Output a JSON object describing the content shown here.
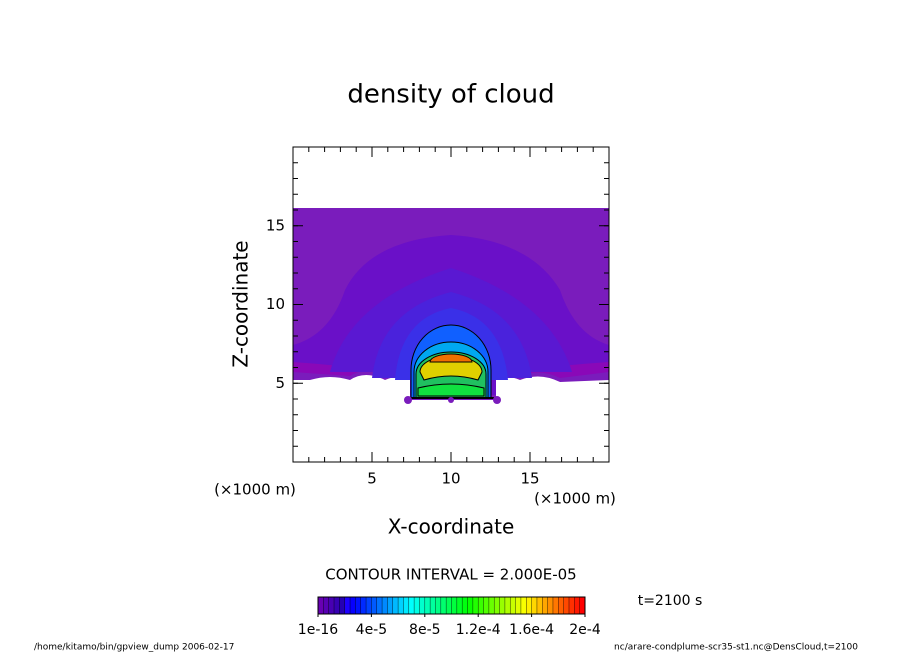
{
  "chart_data": {
    "type": "contour",
    "title": "density of cloud",
    "x_label": "X-coordinate",
    "y_label": "Z-coordinate",
    "x_unit": "(×1000 m)",
    "y_unit": "(×1000 m)",
    "xlim": [
      0,
      20
    ],
    "ylim": [
      0,
      20
    ],
    "xticks": [
      5,
      10,
      15
    ],
    "yticks": [
      5,
      10,
      15
    ],
    "contour_interval": "CONTOUR INTERVAL = 2.000E-05",
    "time_label": "t=2100 s",
    "colorbar": {
      "lim": [
        1e-16,
        0.0002
      ],
      "ticks": [
        1e-16,
        {
          "value": 4e-05,
          "label": "4e-5"
        },
        {
          "value": 8e-05,
          "label": "8e-5"
        },
        {
          "value": 0.00012,
          "label": "1.2e-4"
        },
        {
          "value": 0.00016,
          "label": "1.6e-4"
        },
        {
          "value": 0.0002,
          "label": "2e-4"
        }
      ]
    },
    "footer_left": "/home/kitamo/bin/gpview_dump  2006-02-17",
    "footer_right": "nc/arare-condplume-scr35-st1.nc@DensCloud,t=2100"
  }
}
